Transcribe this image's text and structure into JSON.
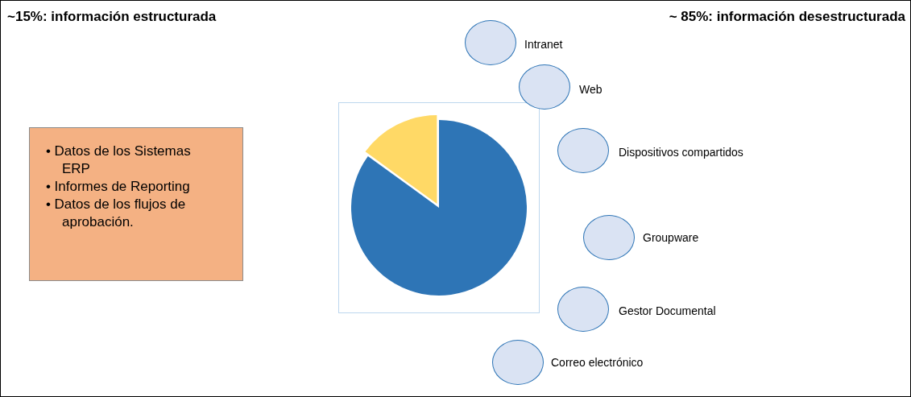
{
  "chart_data": {
    "type": "pie",
    "categories": [
      null,
      null
    ],
    "values": [
      85,
      15
    ],
    "colors": [
      "#2e75b6",
      "#ffd966"
    ],
    "legend": false,
    "annotations": [
      "~15%: información estructurada",
      "~ 85%: información desestructurada",
      "•\tDatos de los Sistemas ERP",
      "•\tInformes de Reporting",
      "•\tDatos de los flujos de aprobación.",
      "Intranet",
      "Web",
      "Dispositivos compartidos",
      "Groupware",
      "Gestor Documental",
      "Correo electrónico"
    ]
  }
}
